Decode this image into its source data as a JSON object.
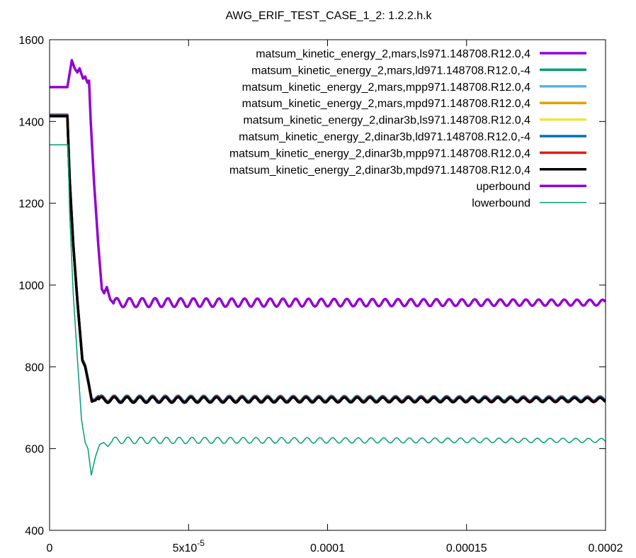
{
  "chart_data": {
    "type": "line",
    "title": "AWG_ERIF_TEST_CASE_1_2: 1.2.2.h.k",
    "xlabel": "",
    "ylabel": "",
    "xlim": [
      0,
      0.0002
    ],
    "ylim": [
      400,
      1600
    ],
    "x_ticks": [
      {
        "value": 0,
        "label": "0"
      },
      {
        "value": 5e-05,
        "label": "5x10",
        "exp": "-5"
      },
      {
        "value": 0.0001,
        "label": "0.0001"
      },
      {
        "value": 0.00015,
        "label": "0.00015"
      },
      {
        "value": 0.0002,
        "label": "0.0002"
      }
    ],
    "y_ticks": [
      {
        "value": 400,
        "label": "400"
      },
      {
        "value": 600,
        "label": "600"
      },
      {
        "value": 800,
        "label": "800"
      },
      {
        "value": 1000,
        "label": "1000"
      },
      {
        "value": 1200,
        "label": "1200"
      },
      {
        "value": 1400,
        "label": "1400"
      },
      {
        "value": 1600,
        "label": "1600"
      }
    ],
    "grid": false,
    "legend_position": "top-right",
    "series": [
      {
        "name": "matsum_kinetic_energy_2,mars,ls971.148708.R12.0,4",
        "color": "#9400d3",
        "width": 3.5,
        "base": "sim",
        "offset": 1.2
      },
      {
        "name": "matsum_kinetic_energy_2,mars,ld971.148708.R12.0,-4",
        "color": "#009e73",
        "width": 3.5,
        "base": "sim",
        "offset": 0.8
      },
      {
        "name": "matsum_kinetic_energy_2,mars,mpp971.148708.R12.0,4",
        "color": "#56b4e9",
        "width": 3.5,
        "base": "sim",
        "offset": 1.6
      },
      {
        "name": "matsum_kinetic_energy_2,mars,mpd971.148708.R12.0,4",
        "color": "#e69f00",
        "width": 3.5,
        "base": "sim",
        "offset": 0.4
      },
      {
        "name": "matsum_kinetic_energy_2,dinar3b,ls971.148708.R12.0,4",
        "color": "#f0e442",
        "width": 3.5,
        "base": "sim",
        "offset": 1.0
      },
      {
        "name": "matsum_kinetic_energy_2,dinar3b,ld971.148708.R12.0,-4",
        "color": "#0072b2",
        "width": 3.5,
        "base": "sim",
        "offset": 2.0
      },
      {
        "name": "matsum_kinetic_energy_2,dinar3b,mpp971.148708.R12.0,4",
        "color": "#e51e10",
        "width": 3.5,
        "base": "sim",
        "offset": 0.6
      },
      {
        "name": "matsum_kinetic_energy_2,dinar3b,mpd971.148708.R12.0,4",
        "color": "#000000",
        "width": 3.5,
        "base": "sim",
        "offset": 0.0
      },
      {
        "name": "uperbound",
        "color": "#9400d3",
        "width": 3.5,
        "base": "upper",
        "offset": 0
      },
      {
        "name": "lowerbound",
        "color": "#009e73",
        "width": 1.5,
        "base": "lower",
        "offset": 0
      }
    ],
    "curves": {
      "sim": {
        "keypoints": [
          [
            0,
            1413
          ],
          [
            6.4e-06,
            1413
          ],
          [
            7.2e-06,
            1260
          ],
          [
            8.5e-06,
            1100
          ],
          [
            1e-05,
            960
          ],
          [
            1.18e-05,
            815
          ],
          [
            1.28e-05,
            800
          ],
          [
            1.4e-05,
            760
          ],
          [
            1.52e-05,
            715
          ],
          [
            1.65e-05,
            718
          ],
          [
            1.75e-05,
            725
          ]
        ],
        "osc_start": 1.75e-05,
        "osc_end": 0.0002,
        "osc_mean": 719,
        "osc_amp": 7,
        "osc_period": 4.6e-06,
        "osc_amp_end": 5
      },
      "upper": {
        "keypoints": [
          [
            0,
            1484
          ],
          [
            6.4e-06,
            1484
          ],
          [
            8e-06,
            1550
          ],
          [
            9e-06,
            1530
          ],
          [
            1e-05,
            1520
          ],
          [
            1.08e-05,
            1530
          ],
          [
            1.2e-05,
            1505
          ],
          [
            1.28e-05,
            1510
          ],
          [
            1.36e-05,
            1495
          ],
          [
            1.42e-05,
            1500
          ],
          [
            1.48e-05,
            1400
          ],
          [
            1.6e-05,
            1250
          ],
          [
            1.75e-05,
            1100
          ],
          [
            1.88e-05,
            990
          ],
          [
            1.96e-05,
            980
          ],
          [
            2.06e-05,
            995
          ],
          [
            2.18e-05,
            965
          ],
          [
            2.3e-05,
            955
          ]
        ],
        "osc_start": 2.3e-05,
        "osc_end": 0.0002,
        "osc_mean": 957,
        "osc_amp": 11,
        "osc_period": 4.6e-06,
        "osc_amp_end": 7
      },
      "lower": {
        "keypoints": [
          [
            0,
            1343
          ],
          [
            6.6e-06,
            1343
          ],
          [
            7.2e-06,
            1180
          ],
          [
            8.5e-06,
            980
          ],
          [
            1e-05,
            820
          ],
          [
            1.15e-05,
            670
          ],
          [
            1.28e-05,
            615
          ],
          [
            1.38e-05,
            600
          ],
          [
            1.5e-05,
            535
          ],
          [
            1.65e-05,
            580
          ],
          [
            1.8e-05,
            610
          ],
          [
            1.95e-05,
            615
          ],
          [
            2.1e-05,
            605
          ],
          [
            2.25e-05,
            618
          ]
        ],
        "osc_start": 2.25e-05,
        "osc_end": 0.0002,
        "osc_mean": 620,
        "osc_amp": 8,
        "osc_period": 4.6e-06,
        "osc_amp_end": 5
      }
    }
  }
}
